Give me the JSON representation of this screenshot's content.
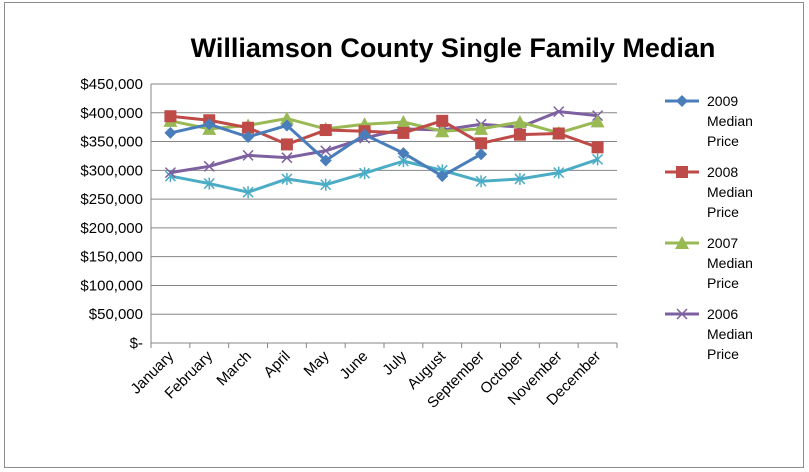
{
  "chart_data": {
    "type": "line",
    "title": "Williamson County Single Family Median",
    "xlabel": "",
    "ylabel": "",
    "categories": [
      "January",
      "February",
      "March",
      "April",
      "May",
      "June",
      "July",
      "August",
      "September",
      "October",
      "November",
      "December"
    ],
    "ylim": [
      0,
      450000
    ],
    "yticks": [
      "$450,000",
      "$400,000",
      "$350,000",
      "$300,000",
      "$250,000",
      "$200,000",
      "$150,000",
      "$100,000",
      "$50,000",
      "$-"
    ],
    "ytick_values": [
      450000,
      400000,
      350000,
      300000,
      250000,
      200000,
      150000,
      100000,
      50000,
      0
    ],
    "grid": true,
    "legend_position": "right",
    "series": [
      {
        "name": "2009 Median Price",
        "legend_lines": [
          "2009",
          "Median",
          "Price"
        ],
        "color": "#4a7ebb",
        "marker": "diamond",
        "values": [
          365000,
          380000,
          358000,
          378000,
          317000,
          362000,
          330000,
          290000,
          328000,
          null,
          null,
          null
        ]
      },
      {
        "name": "2008 Median Price",
        "legend_lines": [
          "2008",
          "Median",
          "Price"
        ],
        "color": "#be4b48",
        "marker": "square",
        "values": [
          394000,
          387000,
          374000,
          345000,
          370000,
          368000,
          365000,
          386000,
          347000,
          362000,
          364000,
          340000
        ]
      },
      {
        "name": "2007 Median Price",
        "legend_lines": [
          "2007",
          "Median",
          "Price"
        ],
        "color": "#98b954",
        "marker": "triangle",
        "values": [
          386000,
          372000,
          378000,
          390000,
          372000,
          380000,
          384000,
          368000,
          372000,
          384000,
          365000,
          385000
        ]
      },
      {
        "name": "2006 Median Price",
        "legend_lines": [
          "2006",
          "Median",
          "Price"
        ],
        "color": "#7d60a0",
        "marker": "x",
        "values": [
          296000,
          307000,
          326000,
          322000,
          334000,
          356000,
          372000,
          370000,
          380000,
          375000,
          402000,
          395000
        ]
      },
      {
        "name": "",
        "legend_lines": [],
        "color": "#4bacc6",
        "marker": "star",
        "values": [
          290000,
          277000,
          262000,
          285000,
          275000,
          295000,
          316000,
          300000,
          281000,
          285000,
          296000,
          319000
        ]
      }
    ]
  }
}
